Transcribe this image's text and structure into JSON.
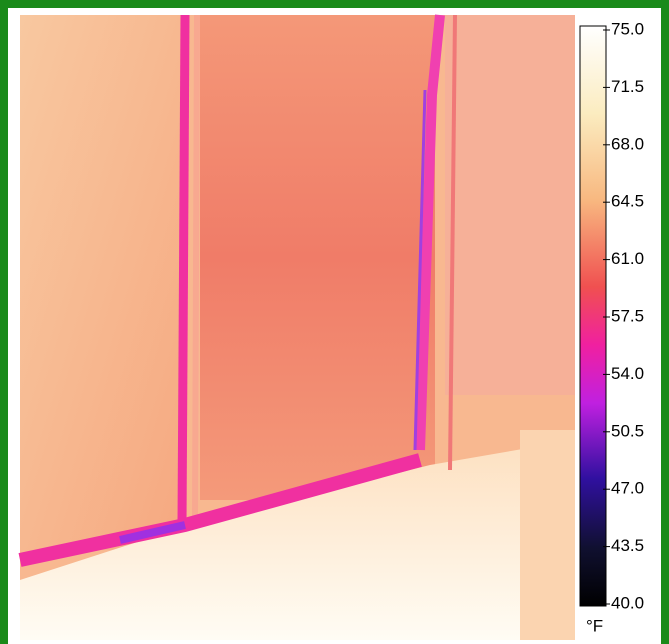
{
  "scale": {
    "ticks": [
      "75.0",
      "71.5",
      "68.0",
      "64.5",
      "61.0",
      "57.5",
      "54.0",
      "50.5",
      "47.0",
      "43.5",
      "40.0"
    ],
    "unit": "°F"
  }
}
